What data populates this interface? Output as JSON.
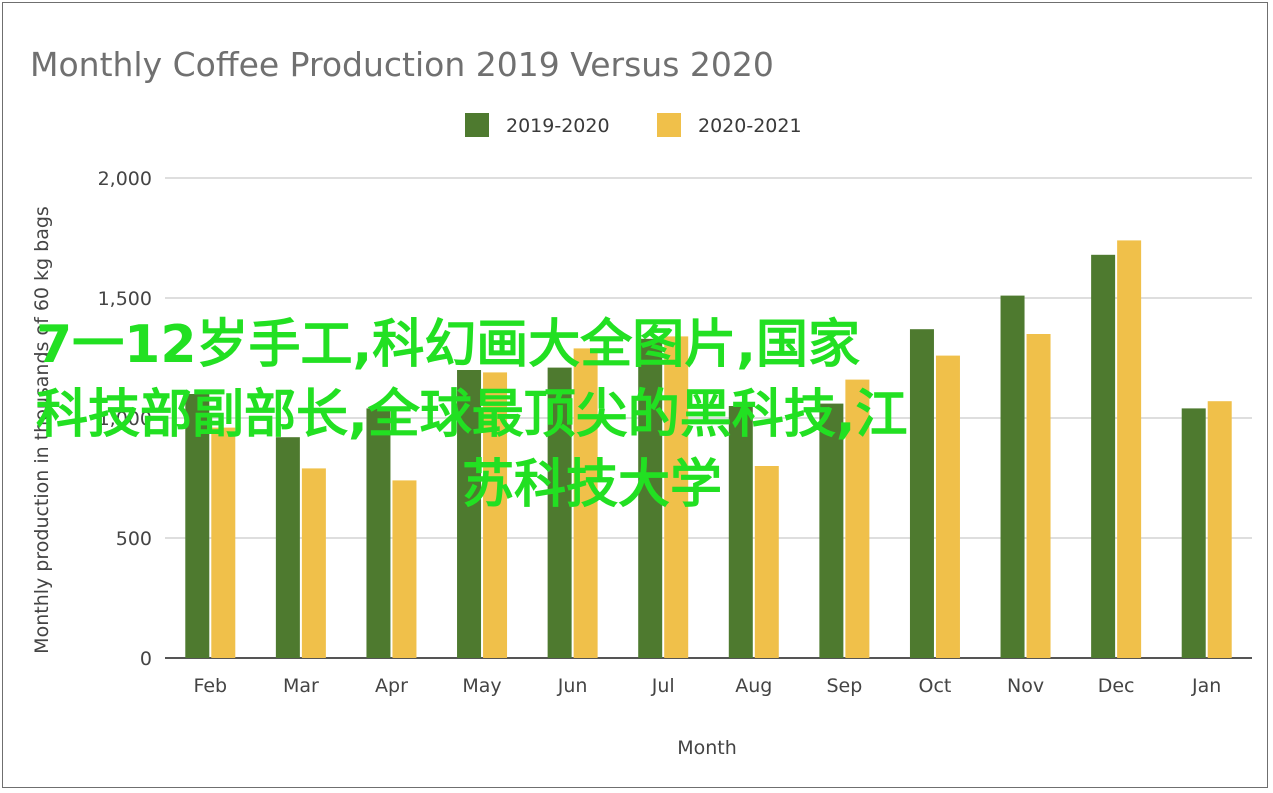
{
  "chart_data": {
    "type": "bar",
    "title": "Monthly Coffee Production 2019 Versus 2020",
    "xlabel": "Month",
    "ylabel": "Monthly production in thousands of 60 kg bags",
    "categories": [
      "Feb",
      "Mar",
      "Apr",
      "May",
      "Jun",
      "Jul",
      "Aug",
      "Sep",
      "Oct",
      "Nov",
      "Dec",
      "Jan"
    ],
    "series": [
      {
        "name": "2019-2020",
        "color": "#4e7a2f",
        "values": [
          1100,
          920,
          1040,
          1200,
          1210,
          1330,
          1050,
          1060,
          1370,
          1510,
          1680,
          1040
        ]
      },
      {
        "name": "2020-2021",
        "color": "#f0c04a",
        "values": [
          960,
          790,
          740,
          1190,
          1290,
          1340,
          800,
          1160,
          1260,
          1350,
          1740,
          1070
        ]
      }
    ],
    "ylim": [
      0,
      2000
    ],
    "yticks": [
      "0",
      "500",
      "1,000",
      "1,500",
      "2,000"
    ],
    "grid": true,
    "legend": "top-center"
  },
  "overlay": {
    "line1": "7一12岁手工,科幻画大全图片,国家",
    "line2": "科技部副部长,全球最顶尖的黑科技,江",
    "line3": "苏科技大学",
    "color": "#22e022"
  }
}
